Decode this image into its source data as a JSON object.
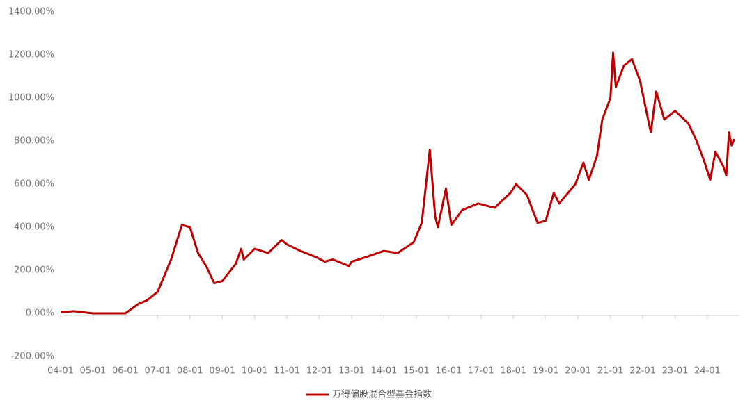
{
  "chart_data": {
    "type": "line",
    "x": [
      "04-01",
      "04-06",
      "05-01",
      "05-06",
      "06-01",
      "06-06",
      "06-09",
      "07-01",
      "07-06",
      "07-10",
      "08-01",
      "08-04",
      "08-07",
      "08-10",
      "09-01",
      "09-06",
      "09-08",
      "09-09",
      "10-01",
      "10-06",
      "10-11",
      "11-01",
      "11-06",
      "11-12",
      "12-03",
      "12-06",
      "12-12",
      "13-01",
      "13-06",
      "14-01",
      "14-06",
      "14-12",
      "15-03",
      "15-06",
      "15-08",
      "15-09",
      "15-12",
      "16-02",
      "16-06",
      "16-12",
      "17-06",
      "17-12",
      "18-02",
      "18-06",
      "18-10",
      "19-01",
      "19-04",
      "19-06",
      "19-12",
      "20-03",
      "20-05",
      "20-08",
      "20-10",
      "21-01",
      "21-02",
      "21-03",
      "21-06",
      "21-09",
      "21-12",
      "22-04",
      "22-06",
      "22-09",
      "22-12",
      "23-01",
      "23-06",
      "23-09",
      "23-12",
      "24-02",
      "24-04",
      "24-07",
      "24-08",
      "24-09",
      "24-10",
      "24-11"
    ],
    "series": [
      {
        "name": "万得偏股混合型基金指数",
        "color": "#c00000",
        "values": [
          5,
          10,
          0,
          0,
          0,
          45,
          60,
          100,
          250,
          410,
          400,
          280,
          220,
          140,
          150,
          230,
          300,
          250,
          300,
          280,
          340,
          320,
          290,
          260,
          240,
          250,
          220,
          240,
          260,
          290,
          280,
          330,
          420,
          760,
          450,
          400,
          580,
          410,
          480,
          510,
          490,
          560,
          600,
          550,
          420,
          430,
          560,
          510,
          600,
          700,
          620,
          730,
          900,
          1000,
          1210,
          1050,
          1150,
          1180,
          1080,
          840,
          1030,
          900,
          930,
          940,
          880,
          800,
          700,
          620,
          750,
          680,
          640,
          840,
          780,
          810
        ]
      }
    ],
    "xticks": [
      "04-01",
      "05-01",
      "06-01",
      "07-01",
      "08-01",
      "09-01",
      "10-01",
      "11-01",
      "12-01",
      "13-01",
      "14-01",
      "15-01",
      "16-01",
      "17-01",
      "18-01",
      "19-01",
      "20-01",
      "21-01",
      "22-01",
      "23-01",
      "24-01"
    ],
    "ylim": [
      -200,
      1400
    ],
    "yticks": [
      {
        "value": -200,
        "label": "-200.00%"
      },
      {
        "value": 0,
        "label": "0.00%"
      },
      {
        "value": 200,
        "label": "200.00%"
      },
      {
        "value": 400,
        "label": "400.00%"
      },
      {
        "value": 600,
        "label": "600.00%"
      },
      {
        "value": 800,
        "label": "800.00%"
      },
      {
        "value": 1000,
        "label": "1000.00%"
      },
      {
        "value": 1200,
        "label": "1200.00%"
      },
      {
        "value": 1400,
        "label": "1400.00%"
      }
    ],
    "legend": "bottom"
  }
}
